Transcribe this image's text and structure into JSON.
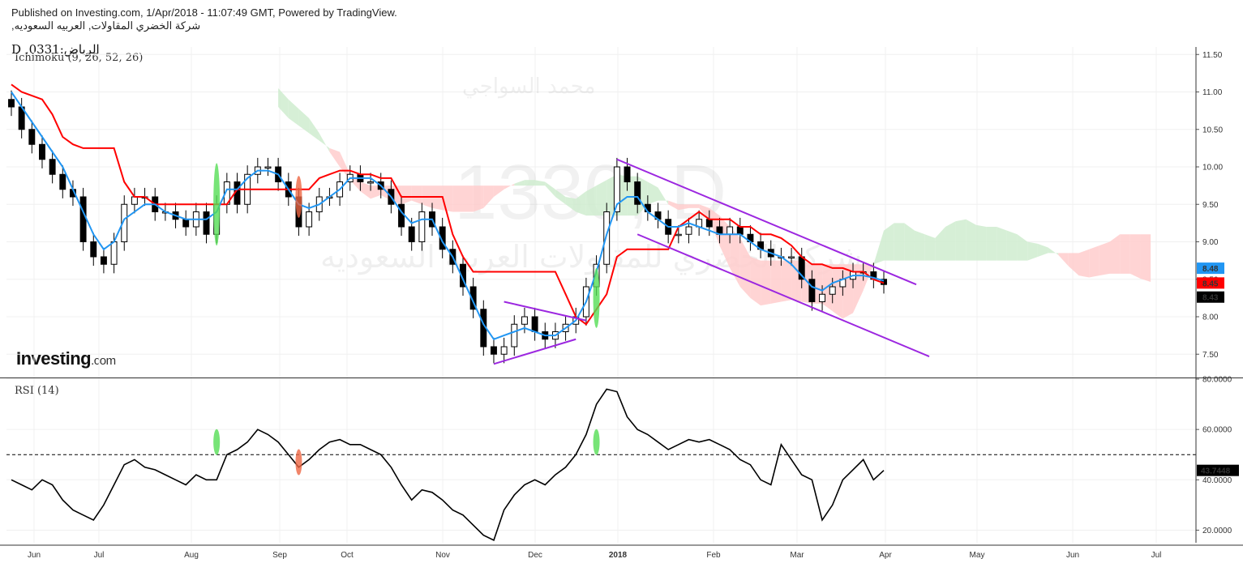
{
  "header": {
    "published": "Published on Investing.com, 1/Apr/2018 - 11:07:49 GMT, Powered by TradingView.",
    "company": "شركة الخضري المقاولات, العربيه السعوديه,",
    "symbol": "D ,0331:الرياض",
    "indicator": "Ichimoku (9, 26, 52, 26)"
  },
  "watermark": {
    "symbol": "1330, D",
    "author": "محمد السواجي",
    "company": "شركة الخضري للمقاولات العربيه السعوديه"
  },
  "logo": {
    "main": "Investing",
    "suffix": ".com"
  },
  "rsi_label": "RSI (14)",
  "colors": {
    "tenkan": "#2196f3",
    "kijun": "#ff0000",
    "cloud_bear": "#ffcccc",
    "cloud_bull": "#cfeccf",
    "channel": "#9c27e0",
    "rsi": "#000000"
  },
  "price_badges": [
    {
      "text": "8.48",
      "value": 8.48,
      "color": "#2196f3"
    },
    {
      "text": "8.45",
      "value": 8.45,
      "color": "#ff0000"
    },
    {
      "text": "8.43",
      "value": 8.43,
      "color": "#000000"
    }
  ],
  "rsi_badge": {
    "text": "43.7448",
    "value": 43.7448
  },
  "chart_data": [
    {
      "type": "candlestick",
      "title": "Ichimoku (9, 26, 52, 26)",
      "ylim": [
        7.2,
        11.6
      ],
      "y_ticks": [
        "7.50",
        "8.00",
        "8.50",
        "9.00",
        "9.50",
        "10.00",
        "10.50",
        "11.00",
        "11.50"
      ],
      "x_ticks": [
        "Jun",
        "Jul",
        "Aug",
        "Sep",
        "Oct",
        "Nov",
        "Dec",
        "2018",
        "Feb",
        "Mar",
        "Apr",
        "May",
        "Jun",
        "Jul"
      ],
      "close": [
        10.8,
        10.5,
        10.3,
        10.1,
        9.9,
        9.7,
        9.6,
        9.0,
        8.8,
        8.7,
        9.0,
        9.5,
        9.6,
        9.6,
        9.4,
        9.4,
        9.3,
        9.2,
        9.4,
        9.1,
        9.5,
        9.8,
        9.5,
        9.9,
        10.0,
        10.0,
        9.8,
        9.6,
        9.2,
        9.4,
        9.6,
        9.6,
        9.8,
        9.9,
        9.8,
        9.8,
        9.7,
        9.5,
        9.2,
        9.0,
        9.4,
        9.2,
        8.9,
        8.7,
        8.4,
        8.1,
        7.6,
        7.5,
        7.6,
        7.9,
        8.0,
        7.8,
        7.7,
        7.8,
        7.9,
        8.0,
        8.4,
        8.7,
        9.4,
        10.0,
        9.8,
        9.5,
        9.4,
        9.3,
        9.1,
        9.1,
        9.2,
        9.3,
        9.2,
        9.1,
        9.2,
        9.1,
        9.0,
        8.9,
        8.8,
        8.8,
        8.8,
        8.5,
        8.2,
        8.3,
        8.4,
        8.5,
        8.6,
        8.6,
        8.5,
        8.43
      ],
      "series": [
        {
          "name": "Tenkan",
          "values": [
            11.0,
            10.8,
            10.6,
            10.4,
            10.2,
            10.0,
            9.7,
            9.4,
            9.1,
            8.9,
            9.0,
            9.3,
            9.4,
            9.5,
            9.5,
            9.4,
            9.35,
            9.3,
            9.3,
            9.3,
            9.4,
            9.7,
            9.7,
            9.85,
            9.95,
            9.95,
            9.9,
            9.7,
            9.5,
            9.45,
            9.5,
            9.6,
            9.7,
            9.85,
            9.85,
            9.85,
            9.75,
            9.6,
            9.4,
            9.25,
            9.3,
            9.3,
            9.0,
            8.8,
            8.5,
            8.2,
            7.9,
            7.7,
            7.75,
            7.8,
            7.85,
            7.8,
            7.75,
            7.75,
            7.85,
            7.95,
            8.2,
            8.6,
            9.1,
            9.5,
            9.6,
            9.6,
            9.4,
            9.3,
            9.2,
            9.2,
            9.25,
            9.2,
            9.15,
            9.1,
            9.1,
            9.1,
            9.0,
            8.9,
            8.85,
            8.8,
            8.7,
            8.55,
            8.4,
            8.35,
            8.45,
            8.5,
            8.55,
            8.55,
            8.52,
            8.48
          ]
        },
        {
          "name": "Kijun",
          "values": [
            11.1,
            11.0,
            10.95,
            10.9,
            10.7,
            10.4,
            10.3,
            10.25,
            10.25,
            10.25,
            10.25,
            9.8,
            9.6,
            9.6,
            9.5,
            9.5,
            9.5,
            9.5,
            9.5,
            9.5,
            9.5,
            9.5,
            9.7,
            9.7,
            9.7,
            9.7,
            9.7,
            9.7,
            9.7,
            9.7,
            9.85,
            9.9,
            9.95,
            9.95,
            9.9,
            9.9,
            9.85,
            9.85,
            9.6,
            9.6,
            9.6,
            9.6,
            9.6,
            9.1,
            8.8,
            8.6,
            8.6,
            8.6,
            8.6,
            8.6,
            8.6,
            8.6,
            8.6,
            8.6,
            8.3,
            8.0,
            7.9,
            8.1,
            8.3,
            8.8,
            8.9,
            8.9,
            8.9,
            8.9,
            8.9,
            9.2,
            9.3,
            9.4,
            9.3,
            9.3,
            9.3,
            9.2,
            9.2,
            9.1,
            9.1,
            9.05,
            8.95,
            8.8,
            8.7,
            8.7,
            8.65,
            8.65,
            8.6,
            8.6,
            8.5,
            8.45
          ]
        }
      ]
    },
    {
      "type": "line",
      "title": "RSI (14)",
      "ylim": [
        15,
        80
      ],
      "y_ticks": [
        "20.0000",
        "40.0000",
        "60.0000",
        "80.0000"
      ],
      "reference_line": 50,
      "series": [
        {
          "name": "RSI",
          "values": [
            40,
            38,
            36,
            40,
            38,
            32,
            28,
            26,
            24,
            30,
            38,
            46,
            48,
            45,
            44,
            42,
            40,
            38,
            42,
            40,
            40,
            50,
            52,
            55,
            60,
            58,
            55,
            50,
            45,
            48,
            52,
            55,
            56,
            54,
            54,
            52,
            50,
            45,
            38,
            32,
            36,
            35,
            32,
            28,
            26,
            22,
            18,
            16,
            28,
            34,
            38,
            40,
            38,
            42,
            45,
            50,
            58,
            70,
            76,
            75,
            65,
            60,
            58,
            55,
            52,
            54,
            56,
            55,
            56,
            54,
            52,
            48,
            46,
            40,
            38,
            54,
            48,
            42,
            40,
            24,
            30,
            40,
            44,
            48,
            40,
            43.74
          ]
        }
      ]
    }
  ]
}
